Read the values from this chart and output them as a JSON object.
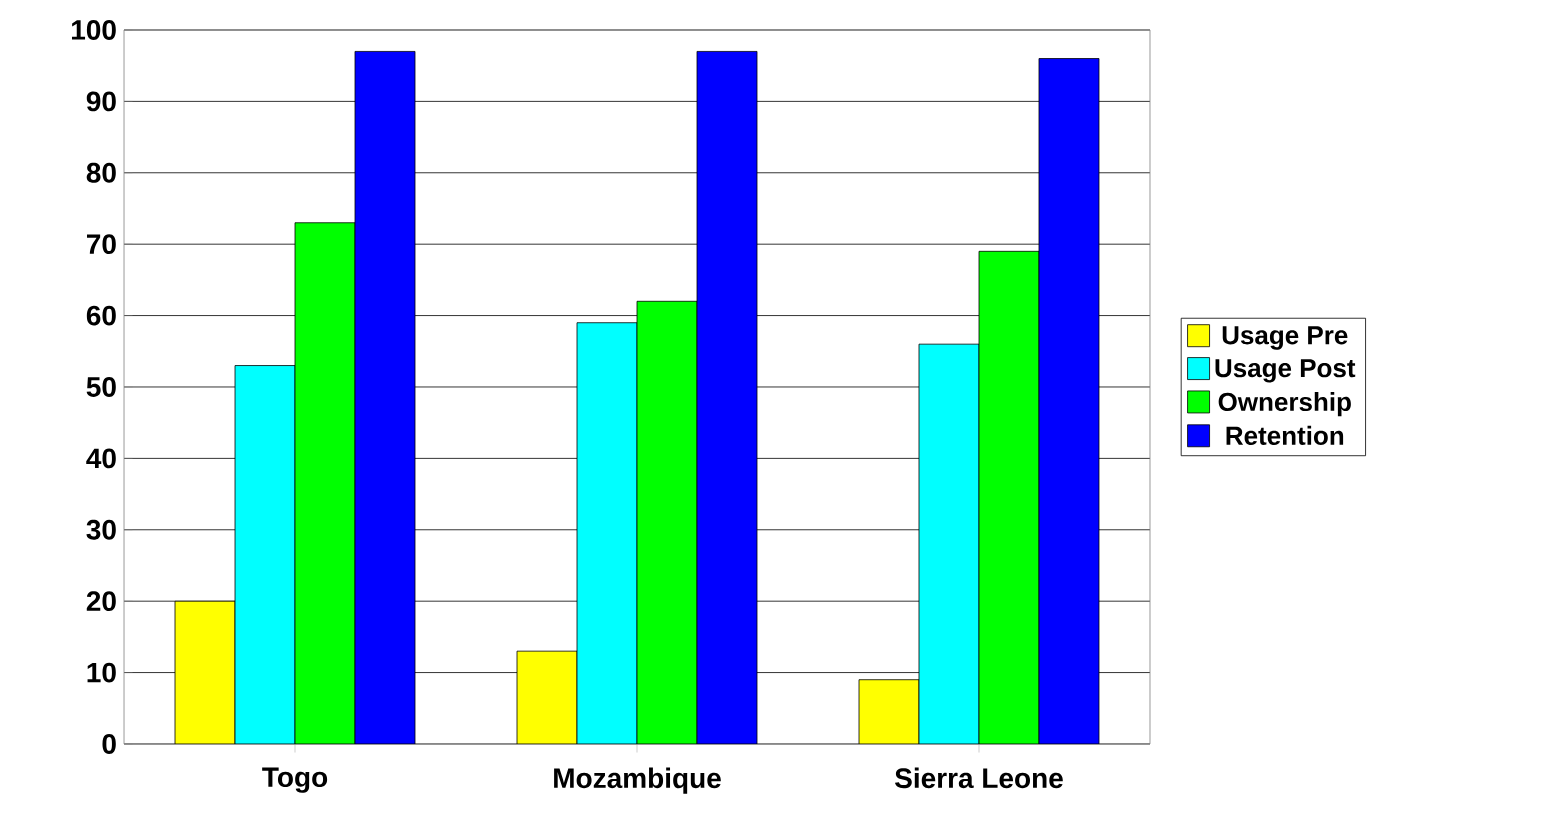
{
  "chart_data": {
    "type": "bar",
    "categories": [
      "Togo",
      "Mozambique",
      "Sierra Leone"
    ],
    "series": [
      {
        "name": "Usage Pre",
        "color": "#ffff00",
        "values": [
          20,
          13,
          9
        ]
      },
      {
        "name": "Usage Post",
        "color": "#00ffff",
        "values": [
          53,
          59,
          56
        ]
      },
      {
        "name": "Ownership",
        "color": "#00ff00",
        "values": [
          73,
          62,
          69
        ]
      },
      {
        "name": "Retention",
        "color": "#0000ff",
        "values": [
          97,
          97,
          96
        ]
      }
    ],
    "ylim": [
      0,
      100
    ],
    "yticks": [
      0,
      10,
      20,
      30,
      40,
      50,
      60,
      70,
      80,
      90,
      100
    ],
    "grid": "y",
    "legend": "right"
  }
}
